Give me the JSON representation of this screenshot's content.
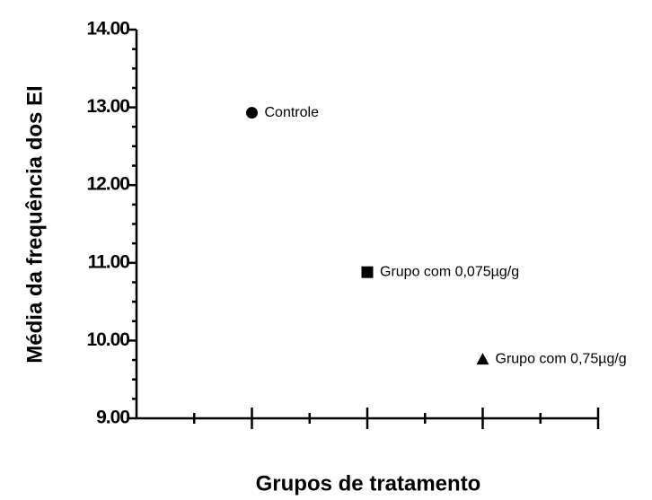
{
  "chart_data": {
    "type": "scatter",
    "xlabel": "Grupos de tratamento",
    "ylabel": "Média da frequência dos EI",
    "xlim": [
      0,
      4
    ],
    "xticks": [
      0,
      1,
      2,
      3,
      4
    ],
    "xminorticks": [
      0.5,
      1.5,
      2.5,
      3.5
    ],
    "ylim": [
      9,
      14
    ],
    "yticks": [
      {
        "value": 9,
        "label": "9.00"
      },
      {
        "value": 10,
        "label": "10.00"
      },
      {
        "value": 11,
        "label": "11.00"
      },
      {
        "value": 12,
        "label": "12.00"
      },
      {
        "value": 13,
        "label": "13.00"
      },
      {
        "value": 14,
        "label": "14.00"
      }
    ],
    "yminorticks": [
      9.25,
      9.5,
      9.75,
      10.25,
      10.5,
      10.75,
      11.25,
      11.5,
      11.75,
      12.25,
      12.5,
      12.75,
      13.25,
      13.5,
      13.75
    ],
    "series": [
      {
        "name": "Controle",
        "marker": "circle",
        "color": "#000000",
        "x": [
          1
        ],
        "values": [
          12.93
        ]
      },
      {
        "name": "Grupo com 0,075µg/g",
        "marker": "square",
        "color": "#000000",
        "x": [
          2
        ],
        "values": [
          10.88
        ]
      },
      {
        "name": "Grupo com 0,75µg/g",
        "marker": "triangle",
        "color": "#000000",
        "x": [
          3
        ],
        "values": [
          9.76
        ]
      }
    ]
  }
}
